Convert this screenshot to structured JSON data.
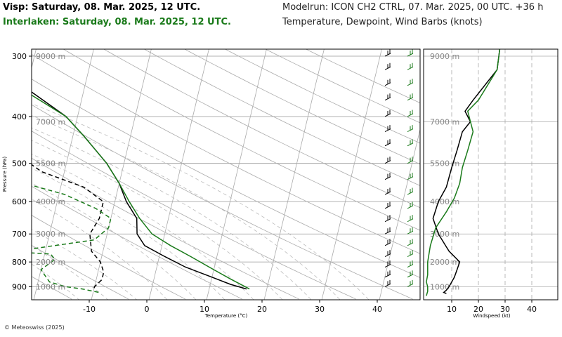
{
  "header": {
    "title_ref": "Visp: Saturday, 08. Mar. 2025, 12 UTC.",
    "title_cmp": "Interlaken: Saturday, 08. Mar. 2025, 12 UTC.",
    "model": "Modelrun: ICON CH2 CTRL, 07. Mar. 2025, 00 UTC. +36 h",
    "variables": "Temperature, Dewpoint, Wind Barbs (knots)"
  },
  "footer": {
    "credit": "© Meteoswiss (2025)"
  },
  "colors": {
    "station_ref": "#000000",
    "station_cmp": "#1a7a1a"
  },
  "chart_data": [
    {
      "type": "line",
      "subtype": "skew-T log-p",
      "xlabel": "Temperature (°C)",
      "ylabel": "Pressure (hPa)",
      "xlim": [
        -20,
        47
      ],
      "ylim": [
        950,
        290
      ],
      "y_scale": "log",
      "grid": true,
      "x_ticks": [
        -10,
        0,
        10,
        20,
        30,
        40
      ],
      "pressure_ticks": [
        300,
        400,
        500,
        600,
        700,
        800,
        900
      ],
      "height_labels": [
        {
          "p": 300,
          "label": "9000 m"
        },
        {
          "p": 410,
          "label": "7000 m"
        },
        {
          "p": 500,
          "label": "5500 m"
        },
        {
          "p": 600,
          "label": "4000 m"
        },
        {
          "p": 700,
          "label": "3000 m"
        },
        {
          "p": 800,
          "label": "2000 m"
        },
        {
          "p": 900,
          "label": "1000 m"
        }
      ],
      "series": [
        {
          "name": "Visp",
          "kind": "temperature",
          "color": "#000000",
          "x": [
            -45,
            -40,
            -30,
            -22,
            -18,
            -13,
            -10,
            -8,
            -5.5,
            -4.8,
            -3.0,
            1.0,
            5.0,
            10.0,
            13.5,
            16.5
          ],
          "y": [
            290,
            300,
            350,
            400,
            440,
            500,
            550,
            600,
            650,
            700,
            740,
            780,
            820,
            860,
            890,
            910
          ]
        },
        {
          "name": "Interlaken",
          "kind": "temperature",
          "color": "#1a7a1a",
          "x": [
            -45,
            -40,
            -31,
            -22,
            -18,
            -13,
            -10,
            -7.5,
            -5.0,
            -2.2,
            1.5,
            5.5,
            10.0,
            13.5,
            17.0
          ],
          "y": [
            290,
            300,
            350,
            400,
            440,
            500,
            550,
            600,
            650,
            700,
            740,
            780,
            830,
            870,
            910
          ]
        },
        {
          "name": "Visp",
          "kind": "dewpoint",
          "color": "#000000",
          "x": [
            -52,
            -50,
            -48,
            -44,
            -38,
            -38,
            -35,
            -30,
            -24,
            -16,
            -12,
            -12,
            -13,
            -12,
            -10,
            -9,
            -9,
            -10,
            -10
          ],
          "y": [
            290,
            310,
            330,
            360,
            390,
            410,
            440,
            470,
            520,
            560,
            600,
            650,
            700,
            760,
            800,
            840,
            870,
            900,
            915
          ]
        },
        {
          "name": "Interlaken",
          "kind": "dewpoint",
          "color": "#1a7a1a",
          "x": [
            -53,
            -49,
            -47,
            -45,
            -36,
            -37,
            -37,
            -34,
            -29,
            -19,
            -13,
            -10,
            -10,
            -12,
            -22,
            -28,
            -19,
            -18,
            -20,
            -18,
            -15,
            -12,
            -9
          ],
          "y": [
            290,
            310,
            330,
            350,
            390,
            420,
            450,
            490,
            540,
            580,
            620,
            650,
            680,
            720,
            750,
            760,
            770,
            790,
            830,
            880,
            900,
            910,
            925
          ]
        }
      ]
    },
    {
      "type": "line",
      "subtype": "wind-profile",
      "xlabel": "Windspeed (kt)",
      "ylabel": "",
      "xlim": [
        0,
        46
      ],
      "x_ticks": [
        10,
        20,
        30,
        40
      ],
      "grid": true,
      "series": [
        {
          "name": "Visp",
          "color": "#000000",
          "x": [
            28,
            27,
            18,
            15,
            17,
            14,
            12,
            10,
            8,
            5,
            3,
            5,
            9,
            13,
            12,
            11,
            10,
            9,
            8,
            7,
            8
          ],
          "y": [
            290,
            320,
            370,
            390,
            410,
            430,
            470,
            510,
            560,
            600,
            650,
            700,
            760,
            800,
            830,
            860,
            880,
            900,
            915,
            925,
            930
          ]
        },
        {
          "name": "Interlaken",
          "color": "#1a7a1a",
          "x": [
            28,
            27,
            20,
            16,
            18,
            16,
            14,
            13,
            11,
            8,
            4,
            2,
            1,
            1,
            0.5,
            1,
            1,
            0.5
          ],
          "y": [
            290,
            320,
            370,
            390,
            430,
            470,
            510,
            550,
            590,
            630,
            680,
            740,
            800,
            850,
            880,
            900,
            920,
            940
          ]
        }
      ]
    }
  ]
}
